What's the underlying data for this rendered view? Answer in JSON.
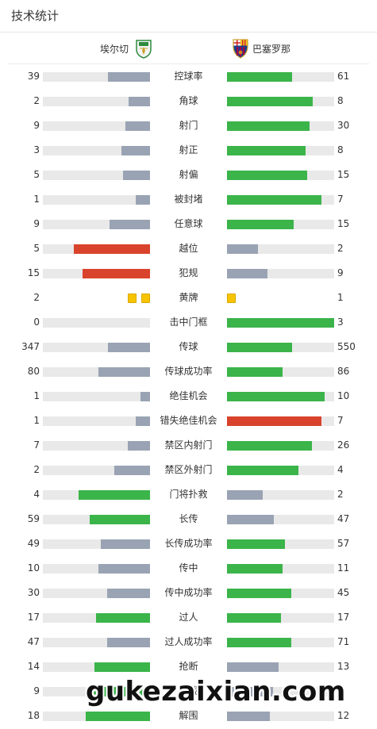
{
  "header": {
    "title": "技术统计"
  },
  "teams": {
    "home": {
      "name": "埃尔切",
      "crest_icon": "elche-crest-icon"
    },
    "away": {
      "name": "巴塞罗那",
      "crest_icon": "barcelona-crest-icon"
    }
  },
  "colors": {
    "green": "#3bb44a",
    "gray": "#99a3b3",
    "red": "#d9432b",
    "track": "#e9e9e9",
    "yellow": "#f8c300"
  },
  "stats": [
    {
      "label": "控球率",
      "home": "39",
      "away": "61",
      "home_fill": 0.39,
      "away_fill": 0.61,
      "home_color": "gray",
      "away_color": "green"
    },
    {
      "label": "角球",
      "home": "2",
      "away": "8",
      "home_fill": 0.2,
      "away_fill": 0.8,
      "home_color": "gray",
      "away_color": "green"
    },
    {
      "label": "射门",
      "home": "9",
      "away": "30",
      "home_fill": 0.23,
      "away_fill": 0.77,
      "home_color": "gray",
      "away_color": "green"
    },
    {
      "label": "射正",
      "home": "3",
      "away": "8",
      "home_fill": 0.27,
      "away_fill": 0.73,
      "home_color": "gray",
      "away_color": "green"
    },
    {
      "label": "射偏",
      "home": "5",
      "away": "15",
      "home_fill": 0.25,
      "away_fill": 0.75,
      "home_color": "gray",
      "away_color": "green"
    },
    {
      "label": "被封堵",
      "home": "1",
      "away": "7",
      "home_fill": 0.13,
      "away_fill": 0.88,
      "home_color": "gray",
      "away_color": "green"
    },
    {
      "label": "任意球",
      "home": "9",
      "away": "15",
      "home_fill": 0.38,
      "away_fill": 0.62,
      "home_color": "gray",
      "away_color": "green"
    },
    {
      "label": "越位",
      "home": "5",
      "away": "2",
      "home_fill": 0.71,
      "away_fill": 0.29,
      "home_color": "red",
      "away_color": "gray"
    },
    {
      "label": "犯规",
      "home": "15",
      "away": "9",
      "home_fill": 0.63,
      "away_fill": 0.38,
      "home_color": "red",
      "away_color": "gray"
    },
    {
      "label": "黄牌",
      "home": "2",
      "away": "1",
      "cards": true
    },
    {
      "label": "击中门框",
      "home": "0",
      "away": "3",
      "home_fill": 0,
      "away_fill": 1,
      "home_color": "gray",
      "away_color": "green"
    },
    {
      "label": "传球",
      "home": "347",
      "away": "550",
      "home_fill": 0.39,
      "away_fill": 0.61,
      "home_color": "gray",
      "away_color": "green"
    },
    {
      "label": "传球成功率",
      "home": "80",
      "away": "86",
      "home_fill": 0.48,
      "away_fill": 0.52,
      "home_color": "gray",
      "away_color": "green"
    },
    {
      "label": "绝佳机会",
      "home": "1",
      "away": "10",
      "home_fill": 0.09,
      "away_fill": 0.91,
      "home_color": "gray",
      "away_color": "green"
    },
    {
      "label": "错失绝佳机会",
      "home": "1",
      "away": "7",
      "home_fill": 0.13,
      "away_fill": 0.88,
      "home_color": "gray",
      "away_color": "red"
    },
    {
      "label": "禁区内射门",
      "home": "7",
      "away": "26",
      "home_fill": 0.21,
      "away_fill": 0.79,
      "home_color": "gray",
      "away_color": "green"
    },
    {
      "label": "禁区外射门",
      "home": "2",
      "away": "4",
      "home_fill": 0.33,
      "away_fill": 0.67,
      "home_color": "gray",
      "away_color": "green"
    },
    {
      "label": "门将扑救",
      "home": "4",
      "away": "2",
      "home_fill": 0.67,
      "away_fill": 0.33,
      "home_color": "green",
      "away_color": "gray"
    },
    {
      "label": "长传",
      "home": "59",
      "away": "47",
      "home_fill": 0.56,
      "away_fill": 0.44,
      "home_color": "green",
      "away_color": "gray"
    },
    {
      "label": "长传成功率",
      "home": "49",
      "away": "57",
      "home_fill": 0.46,
      "away_fill": 0.54,
      "home_color": "gray",
      "away_color": "green"
    },
    {
      "label": "传中",
      "home": "10",
      "away": "11",
      "home_fill": 0.48,
      "away_fill": 0.52,
      "home_color": "gray",
      "away_color": "green"
    },
    {
      "label": "传中成功率",
      "home": "30",
      "away": "45",
      "home_fill": 0.4,
      "away_fill": 0.6,
      "home_color": "gray",
      "away_color": "green"
    },
    {
      "label": "过人",
      "home": "17",
      "away": "17",
      "home_fill": 0.5,
      "away_fill": 0.5,
      "home_color": "green",
      "away_color": "green"
    },
    {
      "label": "过人成功率",
      "home": "47",
      "away": "71",
      "home_fill": 0.4,
      "away_fill": 0.6,
      "home_color": "gray",
      "away_color": "green"
    },
    {
      "label": "抢断",
      "home": "14",
      "away": "13",
      "home_fill": 0.52,
      "away_fill": 0.48,
      "home_color": "green",
      "away_color": "gray"
    },
    {
      "label": "拦截",
      "home": "9",
      "away": "",
      "home_fill": 0.57,
      "away_fill": 0.43,
      "home_color": "green",
      "away_color": "gray"
    },
    {
      "label": "解围",
      "home": "18",
      "away": "12",
      "home_fill": 0.6,
      "away_fill": 0.4,
      "home_color": "green",
      "away_color": "gray"
    }
  ],
  "cards": {
    "home_yellow": 2,
    "away_yellow": 1
  },
  "watermark": "gukezaixian.com"
}
